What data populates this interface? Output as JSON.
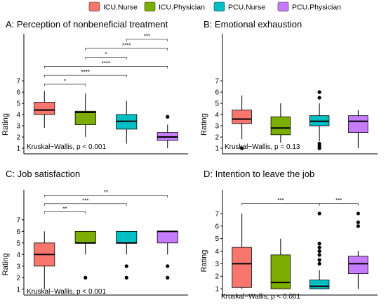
{
  "legend": {
    "items": [
      {
        "label": "ICU.Nurse",
        "color": "#F8766D"
      },
      {
        "label": "ICU.Physician",
        "color": "#7CAE00"
      },
      {
        "label": "PCU.Nurse",
        "color": "#00BFC4"
      },
      {
        "label": "PCU.Physician",
        "color": "#C77CFF"
      }
    ]
  },
  "chart_data": [
    {
      "type": "box",
      "title": "A: Perception of nonbeneficial treatment",
      "ylabel": "Rating",
      "yticks": [
        1,
        2,
        3,
        4,
        5,
        6,
        7
      ],
      "ylim": [
        0.5,
        11.2
      ],
      "categories": [
        "ICU.Nurse",
        "ICU.Physician",
        "PCU.Nurse",
        "PCU.Physician"
      ],
      "boxes": [
        {
          "min": 2.8,
          "q1": 4.0,
          "median": 4.4,
          "q3": 5.1,
          "max": 6.1,
          "outliers": []
        },
        {
          "min": 2.0,
          "q1": 3.1,
          "median": 4.2,
          "q3": 4.3,
          "max": 5.9,
          "outliers": []
        },
        {
          "min": 1.4,
          "q1": 2.7,
          "median": 3.4,
          "q3": 4.0,
          "max": 5.2,
          "outliers": []
        },
        {
          "min": 1.0,
          "q1": 1.7,
          "median": 2.0,
          "q3": 2.4,
          "max": 3.1,
          "outliers": [
            3.8
          ]
        }
      ],
      "annotation": "Kruskal−Wallis, p < 0.001",
      "comparisons": [
        {
          "from": 0,
          "to": 1,
          "y": 6.7,
          "label": "*"
        },
        {
          "from": 0,
          "to": 2,
          "y": 7.5,
          "label": "****"
        },
        {
          "from": 0,
          "to": 3,
          "y": 8.3,
          "label": "****"
        },
        {
          "from": 1,
          "to": 2,
          "y": 9.1,
          "label": "*"
        },
        {
          "from": 1,
          "to": 3,
          "y": 9.9,
          "label": "****"
        },
        {
          "from": 2,
          "to": 3,
          "y": 10.7,
          "label": "***"
        }
      ]
    },
    {
      "type": "box",
      "title": "B: Emotional exhaustion",
      "ylabel": "Rating",
      "yticks": [
        1,
        2,
        3,
        4,
        5,
        6,
        7
      ],
      "ylim": [
        0.5,
        11.2
      ],
      "categories": [
        "ICU.Nurse",
        "ICU.Physician",
        "PCU.Nurse",
        "PCU.Physician"
      ],
      "boxes": [
        {
          "min": 1.8,
          "q1": 3.2,
          "median": 3.6,
          "q3": 4.4,
          "max": 5.7,
          "outliers": [
            1.0
          ]
        },
        {
          "min": 1.5,
          "q1": 2.2,
          "median": 2.8,
          "q3": 3.8,
          "max": 5.0,
          "outliers": []
        },
        {
          "min": 1.6,
          "q1": 3.0,
          "median": 3.4,
          "q3": 3.9,
          "max": 5.0,
          "outliers": [
            6.0,
            5.5,
            1.4,
            1.2,
            1.0
          ]
        },
        {
          "min": 1.0,
          "q1": 2.4,
          "median": 3.4,
          "q3": 3.9,
          "max": 4.4,
          "outliers": []
        }
      ],
      "annotation": "Kruskal−Wallis, p = 0.13",
      "comparisons": []
    },
    {
      "type": "box",
      "title": "C: Job satisfaction",
      "ylabel": "Rating",
      "yticks": [
        1,
        2,
        3,
        4,
        5,
        6,
        7
      ],
      "ylim": [
        0.5,
        9.6
      ],
      "categories": [
        "ICU.Nurse",
        "ICU.Physician",
        "PCU.Nurse",
        "PCU.Physician"
      ],
      "boxes": [
        {
          "min": 1.0,
          "q1": 3.0,
          "median": 4.0,
          "q3": 5.0,
          "max": 6.0,
          "outliers": []
        },
        {
          "min": 4.0,
          "q1": 5.0,
          "median": 5.0,
          "q3": 6.0,
          "max": 6.0,
          "outliers": [
            2.0
          ]
        },
        {
          "min": 4.0,
          "q1": 5.0,
          "median": 5.0,
          "q3": 6.0,
          "max": 6.0,
          "outliers": [
            3.0,
            2.0
          ]
        },
        {
          "min": 4.0,
          "q1": 5.0,
          "median": 6.0,
          "q3": 6.0,
          "max": 6.0,
          "outliers": [
            3.0,
            2.0
          ]
        }
      ],
      "annotation": "Kruskal−Wallis, p < 0.001",
      "comparisons": [
        {
          "from": 0,
          "to": 1,
          "y": 7.7,
          "label": "**"
        },
        {
          "from": 0,
          "to": 2,
          "y": 8.4,
          "label": "***"
        },
        {
          "from": 0,
          "to": 3,
          "y": 9.1,
          "label": "**"
        }
      ]
    },
    {
      "type": "box",
      "title": "D: Intention to leave the job",
      "ylabel": "Rating",
      "yticks": [
        1,
        2,
        3,
        4,
        5,
        6,
        7
      ],
      "ylim": [
        0.5,
        8.9
      ],
      "categories": [
        "ICU.Nurse",
        "ICU.Physician",
        "PCU.Nurse",
        "PCU.Physician"
      ],
      "boxes": [
        {
          "min": 1.0,
          "q1": 1.1,
          "median": 3.0,
          "q3": 4.3,
          "max": 7.0,
          "outliers": []
        },
        {
          "min": 1.0,
          "q1": 1.0,
          "median": 1.5,
          "q3": 3.7,
          "max": 5.0,
          "outliers": []
        },
        {
          "min": 1.0,
          "q1": 1.0,
          "median": 1.2,
          "q3": 1.7,
          "max": 2.5,
          "outliers": [
            7.0,
            4.6,
            4.3,
            4.0,
            3.7,
            3.3,
            3.0
          ]
        },
        {
          "min": 1.0,
          "q1": 2.2,
          "median": 3.0,
          "q3": 3.6,
          "max": 4.0,
          "outliers": [
            7.0,
            6.3,
            6.0
          ]
        }
      ],
      "annotation": "Kruskal−Wallis, p < 0.001",
      "comparisons": [
        {
          "from": 0,
          "to": 2,
          "y": 7.8,
          "label": "***"
        },
        {
          "from": 2,
          "to": 3,
          "y": 7.8,
          "label": "***"
        }
      ]
    }
  ]
}
